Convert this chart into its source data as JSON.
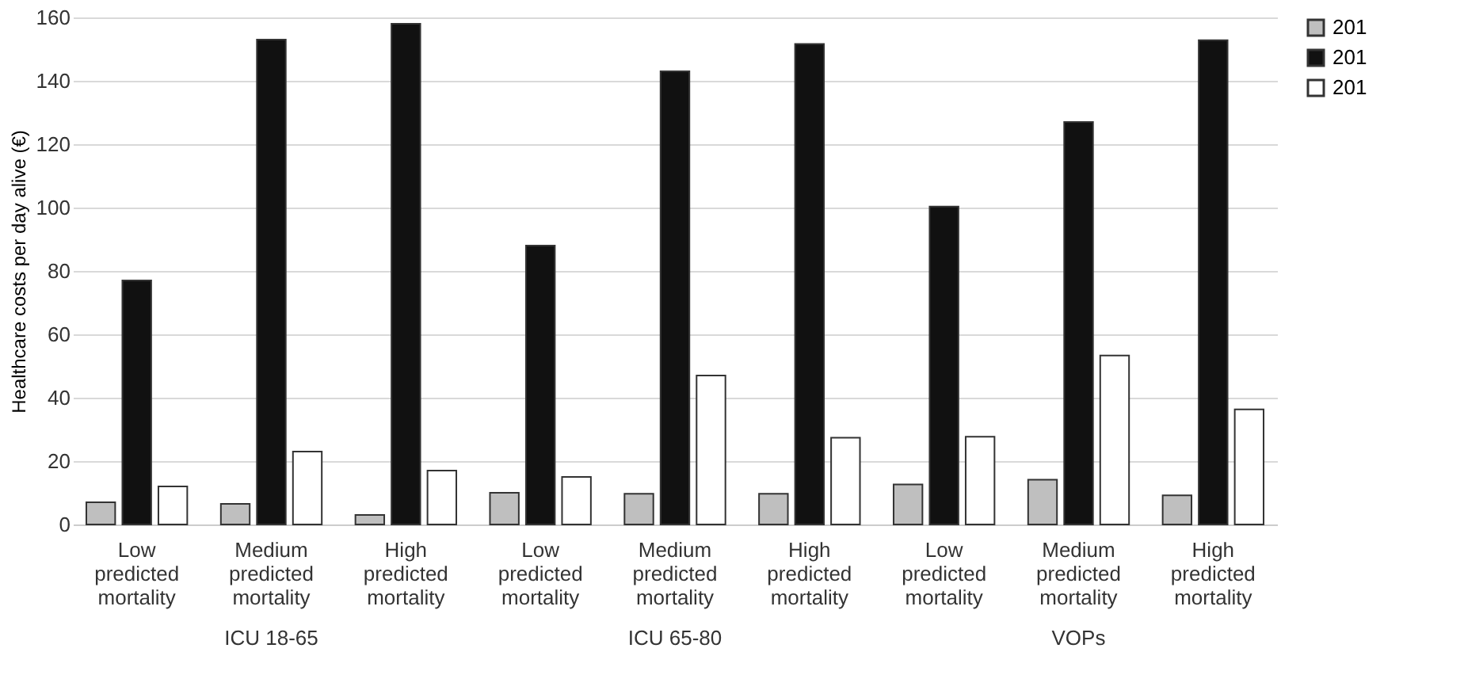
{
  "chart_data": {
    "type": "bar",
    "ylabel": "Healthcare costs per day alive (€)",
    "categories": [
      "Low predicted mortality",
      "Medium predicted mortality",
      "High predicted mortality",
      "Low predicted mortality",
      "Medium predicted mortality",
      "High predicted mortality",
      "Low predicted mortality",
      "Medium predicted mortality",
      "High predicted mortality"
    ],
    "annotations": [
      "ICU 18-65",
      "ICU 65-80",
      "VOPs"
    ],
    "series": [
      {
        "name": "201",
        "color": "#bfbfbf",
        "values": [
          7,
          6.5,
          3,
          10,
          9.7,
          9.7,
          12.6,
          14.1,
          9.2
        ]
      },
      {
        "name": "201",
        "color": "#111111",
        "values": [
          77,
          153,
          158,
          88,
          143,
          151.6,
          100.3,
          127,
          152.8
        ]
      },
      {
        "name": "201",
        "color": "#ffffff",
        "values": [
          12,
          23,
          17,
          15,
          47,
          27.4,
          27.7,
          53.3,
          36.3
        ]
      }
    ],
    "ylim": [
      0,
      160
    ],
    "yticks": [
      0,
      20,
      40,
      60,
      80,
      100,
      120,
      140,
      160
    ],
    "grid": "y",
    "legend": "top right"
  }
}
